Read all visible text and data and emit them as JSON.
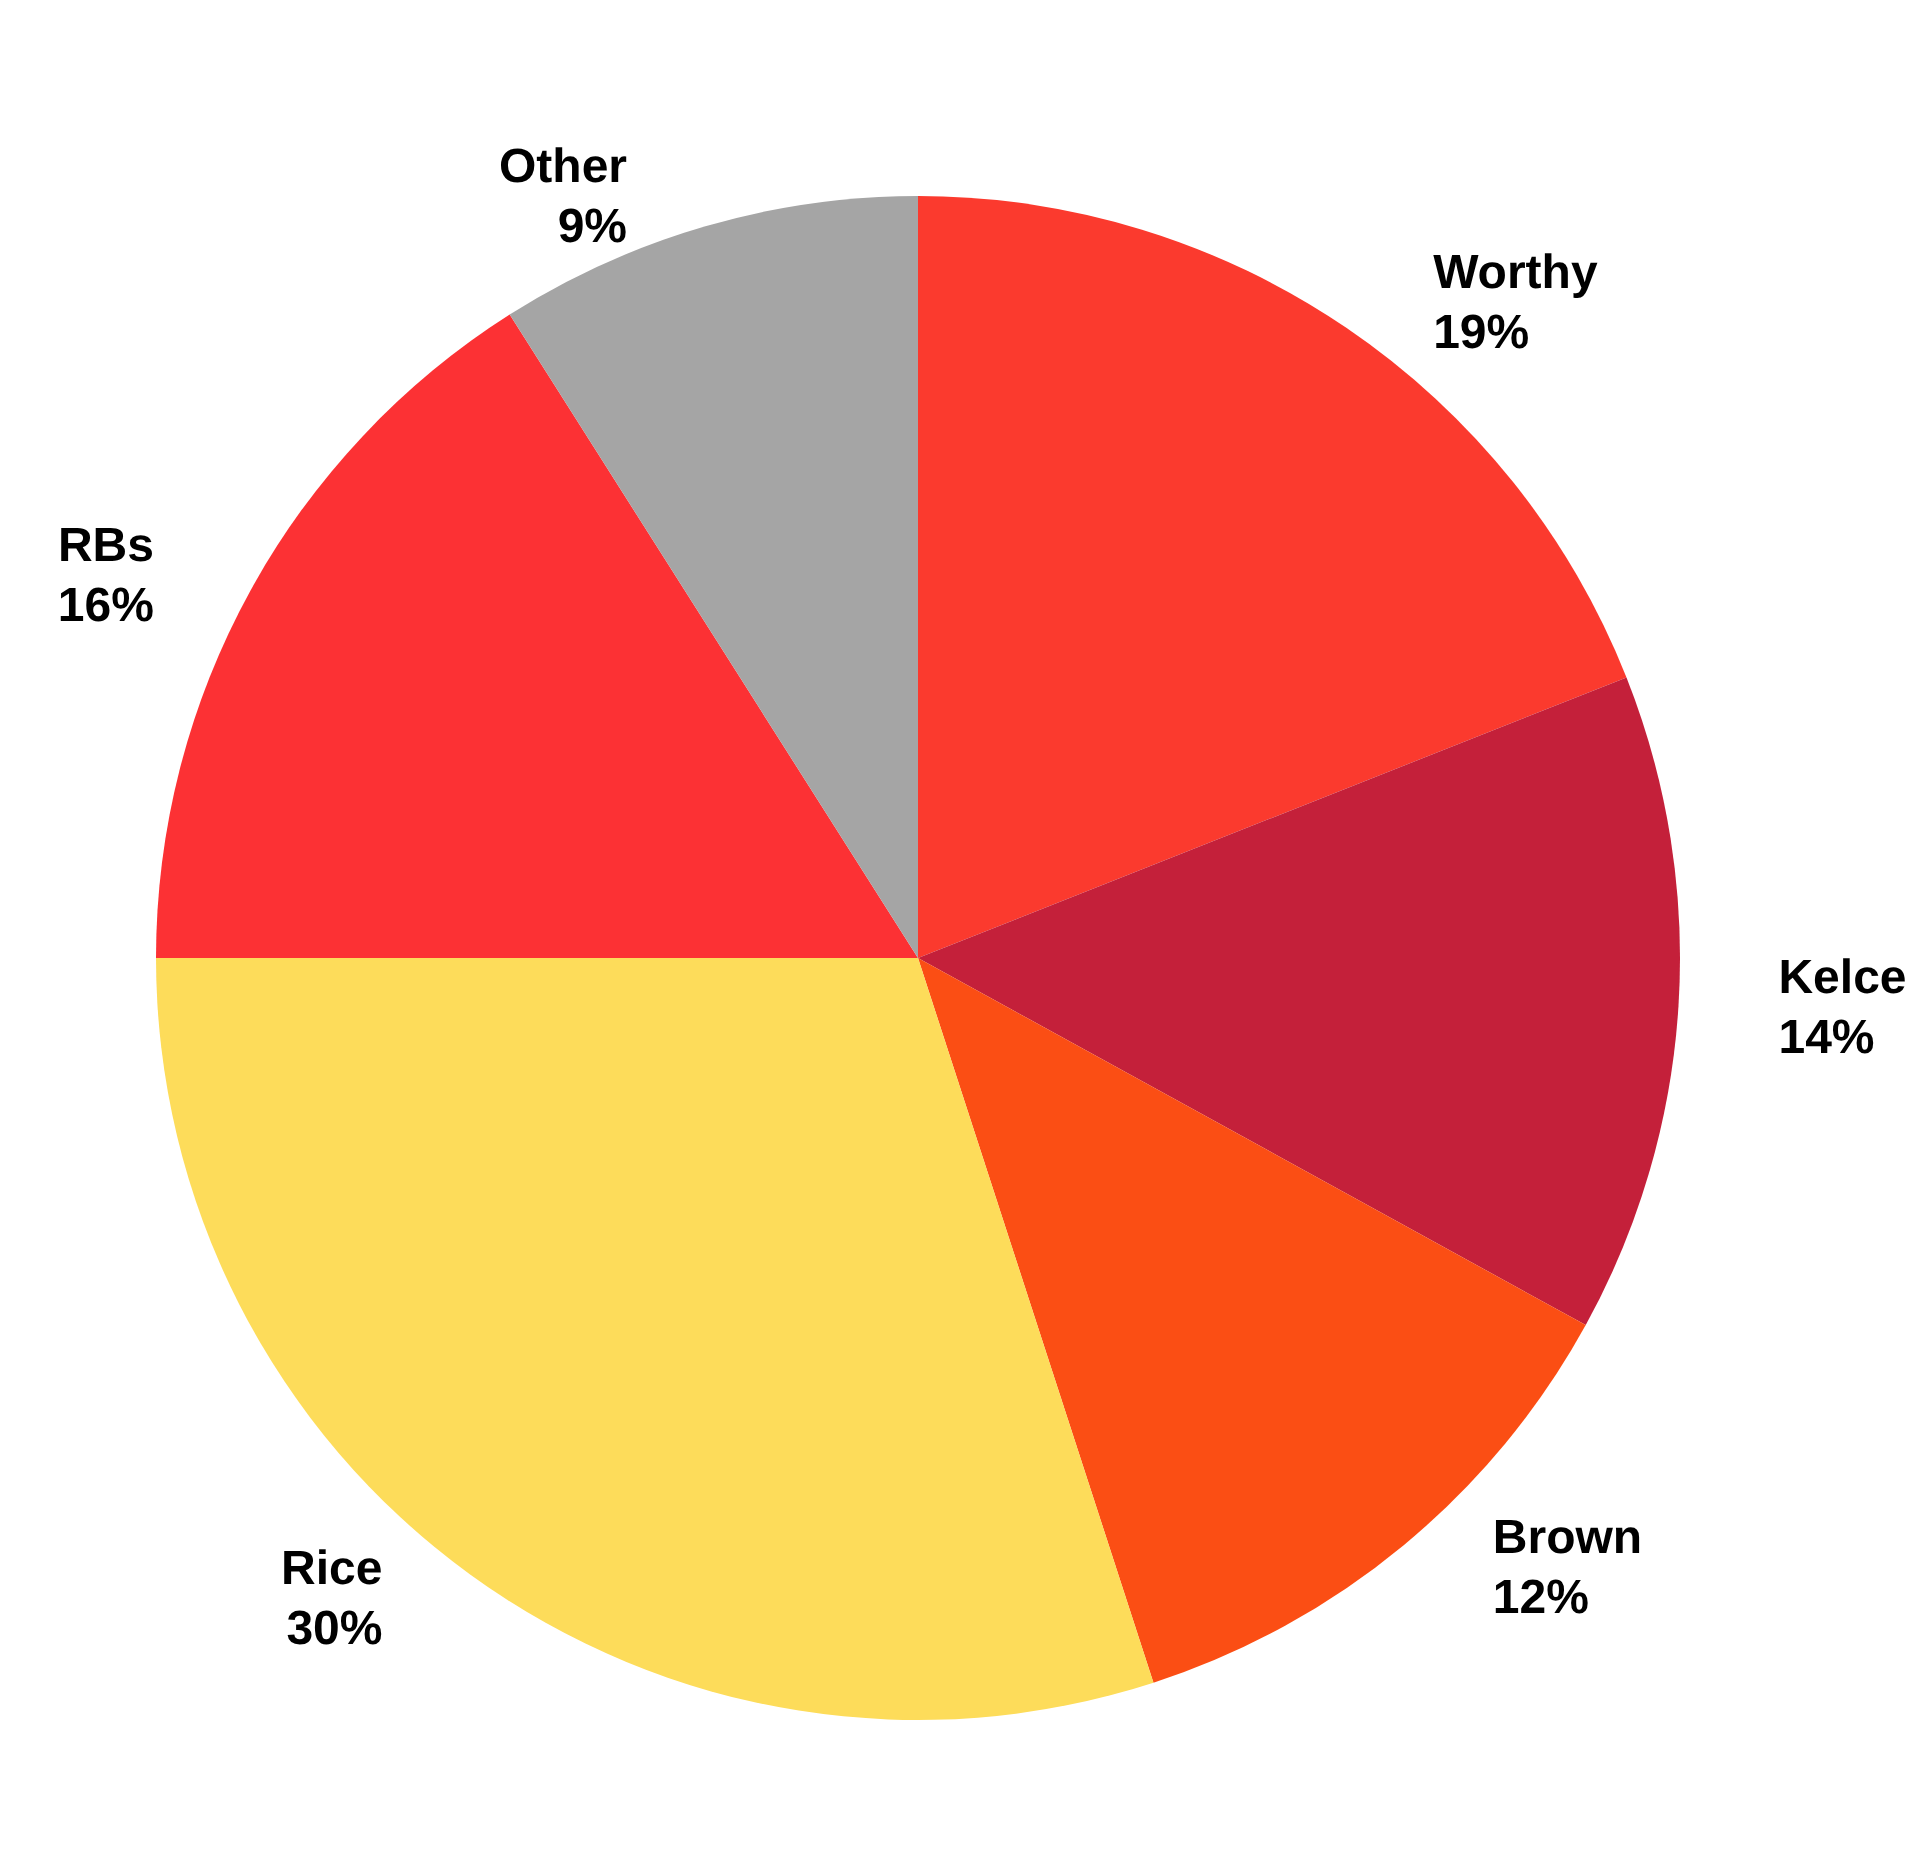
{
  "chart_data": {
    "type": "pie",
    "categories": [
      "Worthy",
      "Kelce",
      "Brown",
      "Rice",
      "RBs",
      "Other"
    ],
    "values": [
      19,
      14,
      12,
      30,
      16,
      9
    ],
    "colors": [
      "#fb3a2e",
      "#c4203a",
      "#fb4e14",
      "#fddc5a",
      "#fc3134",
      "#a5a5a5"
    ],
    "value_labels": [
      "19%",
      "14%",
      "12%",
      "30%",
      "16%",
      "9%"
    ],
    "legend": false
  }
}
